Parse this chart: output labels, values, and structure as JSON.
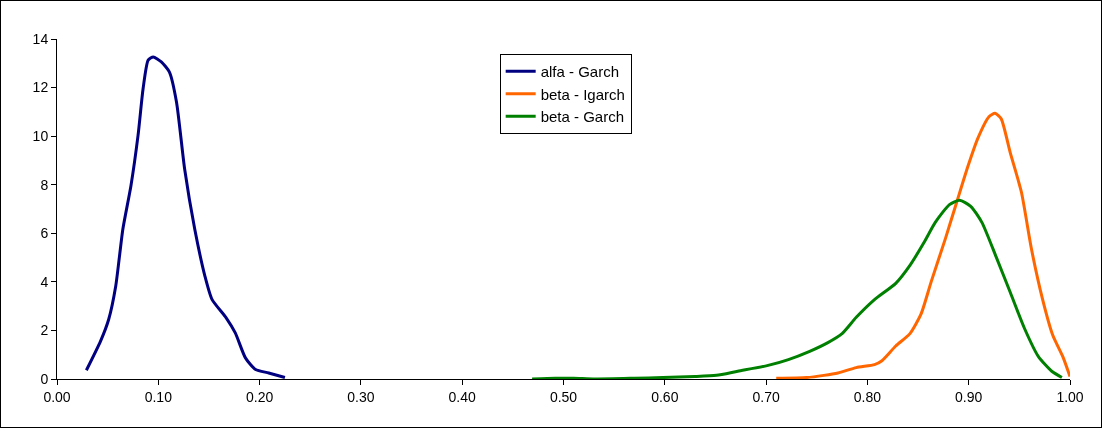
{
  "chart_data": {
    "type": "line",
    "xlim": [
      0,
      1.0
    ],
    "ylim": [
      0,
      14
    ],
    "xticks": [
      {
        "value": 0,
        "label": "0.00"
      },
      {
        "value": 0.1,
        "label": "0.10"
      },
      {
        "value": 0.2,
        "label": "0.20"
      },
      {
        "value": 0.3,
        "label": "0.30"
      },
      {
        "value": 0.4,
        "label": "0.40"
      },
      {
        "value": 0.5,
        "label": "0.50"
      },
      {
        "value": 0.6,
        "label": "0.60"
      },
      {
        "value": 0.7,
        "label": "0.70"
      },
      {
        "value": 0.8,
        "label": "0.80"
      },
      {
        "value": 0.9,
        "label": "0.90"
      },
      {
        "value": 1.0,
        "label": "1.00"
      }
    ],
    "yticks": [
      0,
      2,
      4,
      6,
      8,
      10,
      12,
      14
    ],
    "grid": false,
    "legend": "top center",
    "marker": "none",
    "line_style": "solid",
    "series": [
      {
        "name": "alfa - Garch",
        "color": "#000080",
        "x": [
          0.029,
          0.043,
          0.051,
          0.058,
          0.065,
          0.073,
          0.08,
          0.085,
          0.09,
          0.095,
          0.103,
          0.111,
          0.118,
          0.126,
          0.136,
          0.146,
          0.153,
          0.167,
          0.176,
          0.186,
          0.196,
          0.209,
          0.225
        ],
        "values": [
          0.36,
          1.56,
          2.45,
          3.83,
          6.17,
          7.96,
          10.03,
          11.96,
          13.13,
          13.26,
          13.06,
          12.64,
          11.4,
          8.65,
          6.17,
          4.24,
          3.28,
          2.52,
          1.9,
          0.87,
          0.39,
          0.25,
          0.06
        ]
      },
      {
        "name": "beta - Igarch",
        "color": "#ff6600",
        "x": [
          0.71,
          0.74,
          0.757,
          0.771,
          0.789,
          0.807,
          0.814,
          0.828,
          0.842,
          0.853,
          0.863,
          0.877,
          0.888,
          0.899,
          0.909,
          0.92,
          0.926,
          0.932,
          0.941,
          0.952,
          0.962,
          0.973,
          0.983,
          0.993,
          1.0
        ],
        "values": [
          0.03,
          0.06,
          0.15,
          0.25,
          0.47,
          0.59,
          0.74,
          1.36,
          1.87,
          2.68,
          4.01,
          5.78,
          7.26,
          8.73,
          9.91,
          10.8,
          10.94,
          10.72,
          9.32,
          7.7,
          5.34,
          3.27,
          1.8,
          0.91,
          0.1
        ]
      },
      {
        "name": "beta - Garch",
        "color": "#008000",
        "x": [
          0.469,
          0.492,
          0.51,
          0.531,
          0.57,
          0.598,
          0.63,
          0.651,
          0.672,
          0.701,
          0.722,
          0.743,
          0.761,
          0.775,
          0.789,
          0.807,
          0.828,
          0.842,
          0.856,
          0.867,
          0.881,
          0.891,
          0.902,
          0.913,
          0.927,
          0.941,
          0.955,
          0.969,
          0.982,
          0.992
        ],
        "values": [
          0,
          0.03,
          0.03,
          0,
          0.03,
          0.06,
          0.1,
          0.15,
          0.32,
          0.55,
          0.8,
          1.14,
          1.5,
          1.87,
          2.54,
          3.27,
          3.94,
          4.68,
          5.63,
          6.45,
          7.18,
          7.36,
          7.11,
          6.45,
          5.04,
          3.57,
          2.09,
          0.91,
          0.32,
          0.06
        ]
      }
    ]
  }
}
